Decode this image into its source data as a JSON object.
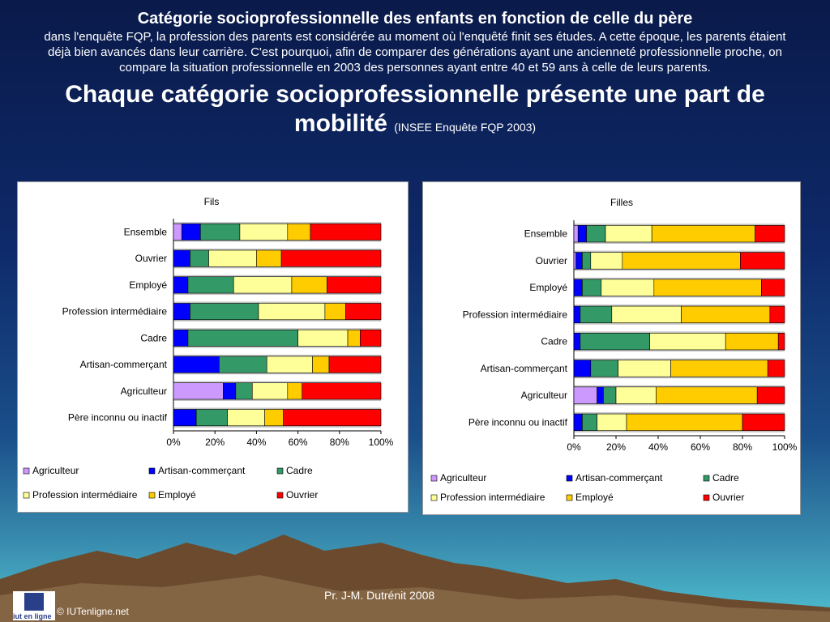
{
  "header": {
    "title": "Catégorie socioprofessionnelle des enfants en fonction de celle du père",
    "intro": "dans l'enquête FQP, la profession des parents est considérée au moment où l'enquêté finit ses études. A cette époque, les parents étaient déjà bien avancés dans leur carrière. C'est pourquoi, afin de comparer des générations ayant une ancienneté professionnelle proche, on compare la situation professionnelle en 2003 des personnes ayant entre 40 et 59 ans à celle de leurs parents.",
    "headline": "Chaque catégorie socioprofessionnelle présente une part de mobilité",
    "source": "(INSEE  Enquête FQP 2003)"
  },
  "footer": {
    "author": "Pr.  J-M. Dutrénit  2008",
    "copyright": "© IUTenligne.net",
    "logo_text": "iut en ligne"
  },
  "colors": {
    "Agriculteur": "#cc99ff",
    "Artisan-commerçant": "#0000ff",
    "Cadre": "#339966",
    "Profession intermédiaire": "#ffff99",
    "Employé": "#ffcc00",
    "Ouvrier": "#ff0000"
  },
  "chart_data": [
    {
      "type": "bar",
      "orientation": "horizontal",
      "stacked": true,
      "title": "Fils",
      "categories": [
        "Ensemble",
        "Ouvrier",
        "Employé",
        "Profession intermédiaire",
        "Cadre",
        "Artisan-commerçant",
        "Agriculteur",
        "Père inconnu ou inactif"
      ],
      "xticks": [
        "0%",
        "20%",
        "40%",
        "60%",
        "80%",
        "100%"
      ],
      "xlim": [
        0,
        100
      ],
      "grid": true,
      "legend": "bottom",
      "series": [
        {
          "name": "Agriculteur",
          "values": [
            4,
            0,
            0,
            0,
            0,
            0,
            24,
            0
          ]
        },
        {
          "name": "Artisan-commerçant",
          "values": [
            9,
            8,
            7,
            8,
            7,
            22,
            6,
            11
          ]
        },
        {
          "name": "Cadre",
          "values": [
            19,
            9,
            22,
            33,
            53,
            23,
            8,
            15
          ]
        },
        {
          "name": "Profession intermédiaire",
          "values": [
            23,
            23,
            28,
            32,
            24,
            22,
            17,
            18
          ]
        },
        {
          "name": "Employé",
          "values": [
            11,
            12,
            17,
            10,
            6,
            8,
            7,
            9
          ]
        },
        {
          "name": "Ouvrier",
          "values": [
            34,
            48,
            26,
            17,
            10,
            25,
            38,
            47
          ]
        }
      ]
    },
    {
      "type": "bar",
      "orientation": "horizontal",
      "stacked": true,
      "title": "Filles",
      "categories": [
        "Ensemble",
        "Ouvrier",
        "Employé",
        "Profession intermédiaire",
        "Cadre",
        "Artisan-commerçant",
        "Agriculteur",
        "Père inconnu ou inactif"
      ],
      "xticks": [
        "0%",
        "20%",
        "40%",
        "60%",
        "80%",
        "100%"
      ],
      "xlim": [
        0,
        100
      ],
      "grid": true,
      "legend": "bottom",
      "series": [
        {
          "name": "Agriculteur",
          "values": [
            2,
            1,
            0,
            0,
            0,
            0,
            11,
            0
          ]
        },
        {
          "name": "Artisan-commerçant",
          "values": [
            4,
            3,
            4,
            3,
            3,
            8,
            3,
            4
          ]
        },
        {
          "name": "Cadre",
          "values": [
            9,
            4,
            9,
            15,
            33,
            13,
            6,
            7
          ]
        },
        {
          "name": "Profession intermédiaire",
          "values": [
            22,
            15,
            25,
            33,
            36,
            25,
            19,
            14
          ]
        },
        {
          "name": "Employé",
          "values": [
            49,
            56,
            51,
            42,
            25,
            46,
            48,
            55
          ]
        },
        {
          "name": "Ouvrier",
          "values": [
            14,
            21,
            11,
            7,
            3,
            8,
            13,
            20
          ]
        }
      ]
    }
  ]
}
